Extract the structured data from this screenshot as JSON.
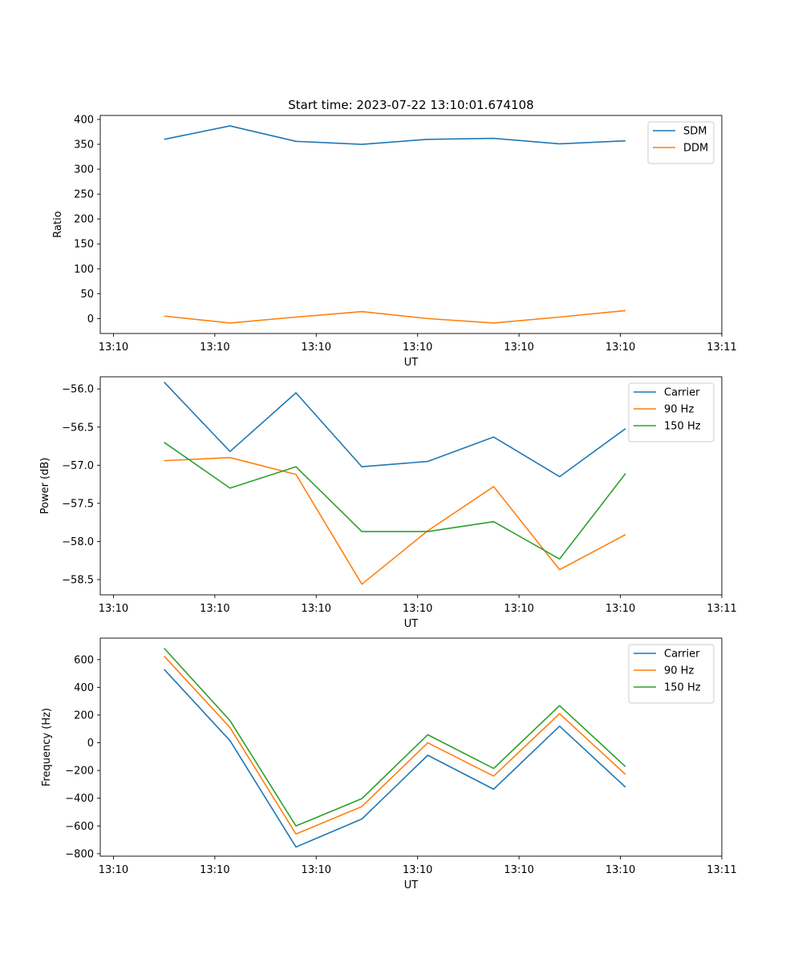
{
  "figure_title": "Start time: 2023-07-22 13:10:01.674108",
  "colors": {
    "c0": "#1f77b4",
    "c1": "#ff7f0e",
    "c2": "#2ca02c"
  },
  "chart_data": [
    {
      "type": "line",
      "title": "Start time: 2023-07-22 13:10:01.674108",
      "xlabel": "UT",
      "ylabel": "Ratio",
      "x": [
        0.5,
        1.15,
        1.8,
        2.45,
        3.1,
        3.75,
        4.4,
        5.05
      ],
      "xlim": [
        -0.13,
        6.0
      ],
      "xticks": [
        0,
        1,
        2,
        3,
        4,
        5,
        6
      ],
      "xticklabels": [
        "13:10",
        "13:10",
        "13:10",
        "13:10",
        "13:10",
        "13:10",
        "13:11"
      ],
      "ylim": [
        -30,
        408
      ],
      "yticks": [
        0,
        50,
        100,
        150,
        200,
        250,
        300,
        350,
        400
      ],
      "yticklabels": [
        "0",
        "50",
        "100",
        "150",
        "200",
        "250",
        "300",
        "350",
        "400"
      ],
      "legend_position": "top-right",
      "series": [
        {
          "name": "SDM",
          "color": "#1f77b4",
          "values": [
            360,
            387,
            356,
            350,
            360,
            362,
            351,
            357
          ]
        },
        {
          "name": "DDM",
          "color": "#ff7f0e",
          "values": [
            5,
            -9,
            3,
            14,
            0,
            -9,
            3,
            16
          ]
        }
      ]
    },
    {
      "type": "line",
      "title": "",
      "xlabel": "UT",
      "ylabel": "Power (dB)",
      "x": [
        0.5,
        1.15,
        1.8,
        2.45,
        3.1,
        3.75,
        4.4,
        5.05
      ],
      "xlim": [
        -0.13,
        6.0
      ],
      "xticks": [
        0,
        1,
        2,
        3,
        4,
        5,
        6
      ],
      "xticklabels": [
        "13:10",
        "13:10",
        "13:10",
        "13:10",
        "13:10",
        "13:10",
        "13:11"
      ],
      "ylim": [
        -58.7,
        -55.84
      ],
      "yticks": [
        -58.5,
        -58.0,
        -57.5,
        -57.0,
        -56.5,
        -56.0
      ],
      "yticklabels": [
        "−58.5",
        "−58.0",
        "−57.5",
        "−57.0",
        "−56.5",
        "−56.0"
      ],
      "legend_position": "top-right",
      "series": [
        {
          "name": "Carrier",
          "color": "#1f77b4",
          "values": [
            -55.91,
            -56.82,
            -56.05,
            -57.02,
            -56.95,
            -56.63,
            -57.15,
            -56.52
          ]
        },
        {
          "name": "90 Hz",
          "color": "#ff7f0e",
          "values": [
            -56.94,
            -56.9,
            -57.12,
            -58.56,
            -57.86,
            -57.28,
            -58.37,
            -57.91
          ]
        },
        {
          "name": "150 Hz",
          "color": "#2ca02c",
          "values": [
            -56.7,
            -57.3,
            -57.02,
            -57.87,
            -57.87,
            -57.74,
            -58.23,
            -57.11
          ]
        }
      ]
    },
    {
      "type": "line",
      "title": "",
      "xlabel": "UT",
      "ylabel": "Frequency (Hz)",
      "x": [
        0.5,
        1.15,
        1.8,
        2.45,
        3.1,
        3.75,
        4.4,
        5.05
      ],
      "xlim": [
        -0.13,
        6.0
      ],
      "xticks": [
        0,
        1,
        2,
        3,
        4,
        5,
        6
      ],
      "xticklabels": [
        "13:10",
        "13:10",
        "13:10",
        "13:10",
        "13:10",
        "13:10",
        "13:11"
      ],
      "ylim": [
        -818,
        755
      ],
      "yticks": [
        -800,
        -600,
        -400,
        -200,
        0,
        200,
        400,
        600
      ],
      "yticklabels": [
        "−800",
        "−600",
        "−400",
        "−200",
        "0",
        "200",
        "400",
        "600"
      ],
      "legend_position": "top-right",
      "series": [
        {
          "name": "Carrier",
          "color": "#1f77b4",
          "values": [
            530,
            15,
            -752,
            -550,
            -90,
            -335,
            120,
            -320
          ]
        },
        {
          "name": "90 Hz",
          "color": "#ff7f0e",
          "values": [
            625,
            110,
            -658,
            -460,
            0,
            -240,
            210,
            -228
          ]
        },
        {
          "name": "150 Hz",
          "color": "#2ca02c",
          "values": [
            682,
            160,
            -600,
            -403,
            58,
            -185,
            268,
            -172
          ]
        }
      ]
    }
  ]
}
